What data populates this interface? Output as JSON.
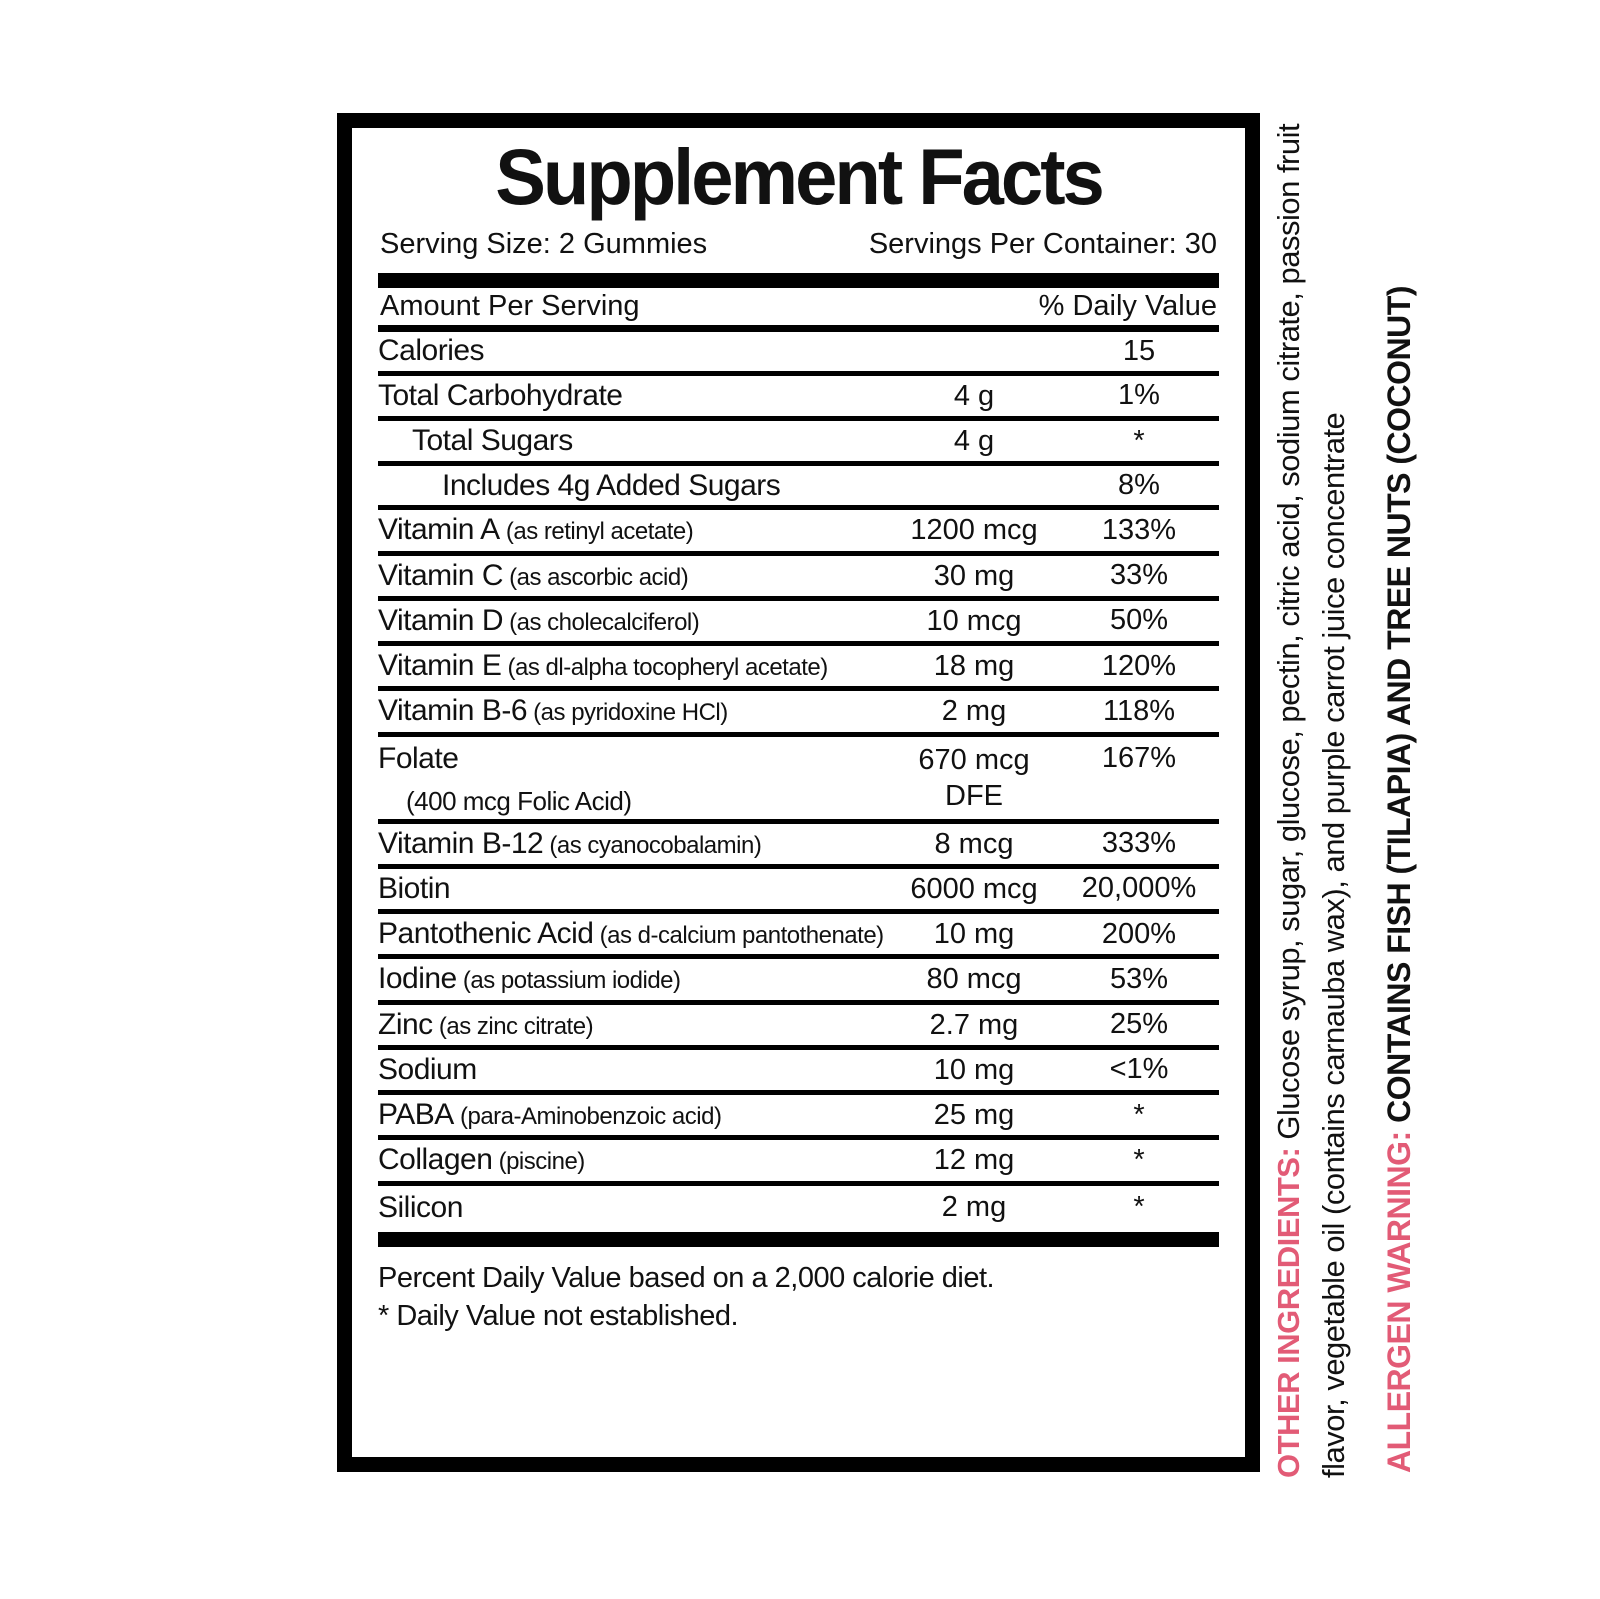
{
  "colors": {
    "accent_pink": "#e25b76",
    "text": "#111111"
  },
  "label": {
    "title": "Supplement Facts",
    "serving_size": "Serving Size: 2 Gummies",
    "servings_per_container": "Servings Per Container: 30",
    "header": {
      "amount": "Amount Per Serving",
      "daily_value": "% Daily Value"
    },
    "rows": [
      {
        "name": "Calories",
        "amount": "",
        "dv": "15"
      },
      {
        "name": "Total Carbohydrate",
        "amount": "4 g",
        "dv": "1%"
      },
      {
        "name": "Total Sugars",
        "indent": 1,
        "amount": "4 g",
        "dv": "*"
      },
      {
        "name": "Includes 4g Added Sugars",
        "indent": 2,
        "amount": "",
        "dv": "8%"
      },
      {
        "name": "Vitamin A",
        "note": "(as retinyl acetate)",
        "amount": "1200 mcg",
        "dv": "133%"
      },
      {
        "name": "Vitamin C",
        "note": "(as ascorbic acid)",
        "amount": "30 mg",
        "dv": "33%"
      },
      {
        "name": "Vitamin D",
        "note": "(as cholecalciferol)",
        "amount": "10 mcg",
        "dv": "50%"
      },
      {
        "name": "Vitamin E",
        "note": "(as dl-alpha tocopheryl acetate)",
        "amount": "18 mg",
        "dv": "120%"
      },
      {
        "name": "Vitamin B-6",
        "note": "(as pyridoxine HCl)",
        "amount": "2 mg",
        "dv": "118%"
      },
      {
        "name": "Folate",
        "sub": "(400 mcg Folic Acid)",
        "amount": "670 mcg\nDFE",
        "dv": "167%"
      },
      {
        "name": "Vitamin B-12",
        "note": "(as cyanocobalamin)",
        "amount": "8 mcg",
        "dv": "333%"
      },
      {
        "name": "Biotin",
        "amount": "6000 mcg",
        "dv": "20,000%"
      },
      {
        "name": "Pantothenic Acid",
        "note": "(as d-calcium pantothenate)",
        "amount": "10 mg",
        "dv": "200%"
      },
      {
        "name": "Iodine",
        "note": "(as potassium iodide)",
        "amount": "80 mcg",
        "dv": "53%"
      },
      {
        "name": "Zinc",
        "note": "(as zinc citrate)",
        "amount": "2.7 mg",
        "dv": "25%"
      },
      {
        "name": "Sodium",
        "amount": "10 mg",
        "dv": "<1%"
      },
      {
        "name": "PABA",
        "note": "(para-Aminobenzoic acid)",
        "amount": "25 mg",
        "dv": "*"
      },
      {
        "name": "Collagen",
        "note": "(piscine)",
        "amount": "12 mg",
        "dv": "*"
      },
      {
        "name": "Silicon",
        "amount": "2 mg",
        "dv": "*"
      }
    ],
    "footnotes": [
      "Percent Daily Value based on a 2,000 calorie diet.",
      "* Daily Value not established."
    ]
  },
  "side_text": {
    "other_ingredients": {
      "label": "OTHER INGREDIENTS:",
      "line1": "Glucose syrup, sugar, glucose, pectin, citric acid, sodium citrate, passion fruit",
      "line2": "flavor, vegetable oil (contains carnauba wax), and purple carrot juice concentrate"
    },
    "allergen": {
      "label": "ALLERGEN WARNING:",
      "text": "CONTAINS FISH (TILAPIA) AND TREE NUTS (COCONUT)"
    }
  }
}
